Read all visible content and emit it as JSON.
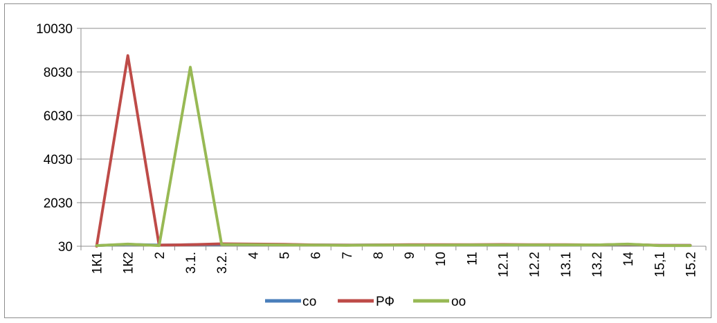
{
  "chart_data": {
    "type": "line",
    "title": "",
    "xlabel": "",
    "ylabel": "",
    "categories": [
      "1К1",
      "1К2",
      "2",
      "3.1.",
      "3.2.",
      "4",
      "5",
      "6",
      "7",
      "8",
      "9",
      "10",
      "11",
      "12.1",
      "12.2",
      "13.1",
      "13.2",
      "14",
      "15,1",
      "15.2"
    ],
    "y_ticks": [
      "30",
      "2030",
      "4030",
      "6030",
      "8030",
      "10030"
    ],
    "ylim": [
      30,
      10030
    ],
    "grid": true,
    "legend_position": "bottom",
    "series": [
      {
        "name": "со",
        "color": "#4a7ebb",
        "values": [
          60,
          120,
          80,
          100,
          110,
          100,
          100,
          90,
          80,
          90,
          90,
          90,
          90,
          90,
          90,
          90,
          90,
          110,
          70,
          70
        ]
      },
      {
        "name": "РФ",
        "color": "#be4b48",
        "values": [
          30,
          8780,
          80,
          100,
          140,
          130,
          120,
          90,
          80,
          90,
          100,
          100,
          100,
          110,
          100,
          100,
          90,
          120,
          70,
          70
        ]
      },
      {
        "name": "оо",
        "color": "#98b954",
        "values": [
          60,
          130,
          60,
          8250,
          110,
          100,
          90,
          80,
          70,
          80,
          80,
          80,
          90,
          90,
          90,
          90,
          90,
          130,
          60,
          60
        ]
      }
    ]
  }
}
